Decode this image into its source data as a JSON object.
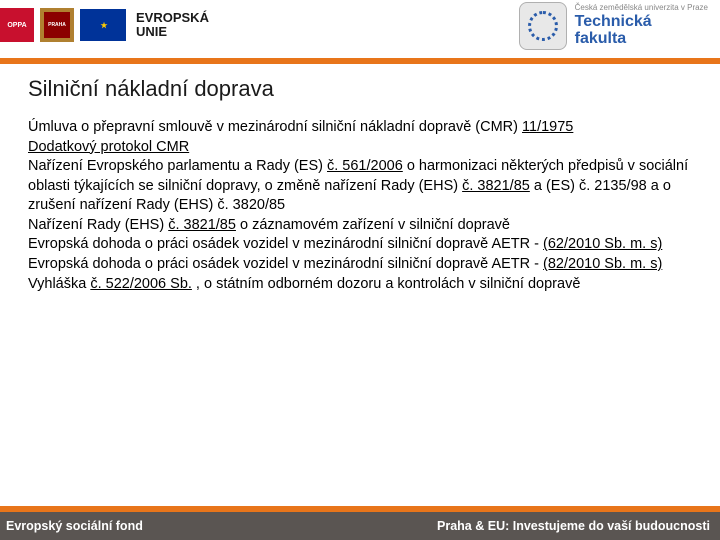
{
  "header": {
    "oppa": "OPPA",
    "praha_lines": [
      "PRA",
      "HA",
      "PRA",
      "GUE",
      "PRA",
      "GA"
    ],
    "eu_label_line1": "EVROPSKÁ",
    "eu_label_line2": "UNIE",
    "tf_small": "Česká zemědělská univerzita v Praze",
    "tf_line1": "Technická",
    "tf_line2": "fakulta"
  },
  "title": "Silniční nákladní doprava",
  "body": {
    "p1a": "Úmluva o přepravní smlouvě v mezinárodní silniční nákladní dopravě (CMR) ",
    "link1": "11/1975",
    "link2": "Dodatkový protokol CMR",
    "p2a": "Nařízení Evropského parlamentu a Rady (ES) ",
    "link3": "č. 561/2006",
    "p2b": " o harmonizaci některých předpisů v sociální oblasti týkajících se silniční dopravy, o změně nařízení Rady (EHS) ",
    "link4": "č. 3821/85",
    "p2c": " a (ES) č. 2135/98 a o zrušení nařízení Rady (EHS) č. 3820/85",
    "p3a": "Nařízení Rady (EHS) ",
    "link5": "č. 3821/85",
    "p3b": " o záznamovém zařízení v silniční dopravě",
    "p4a": "Evropská dohoda o práci osádek vozidel v mezinárodní silniční dopravě AETR - ",
    "link6": "(62/2010 Sb. m. s)",
    "p5a": "Evropská dohoda o práci osádek vozidel v mezinárodní silniční dopravě AETR - ",
    "link7": "(82/2010 Sb. m. s)",
    "p6a": "Vyhláška ",
    "link8": "č. 522/2006 Sb.",
    "p6b": " , o státním odborném dozoru a kontrolách v silniční dopravě"
  },
  "footer": {
    "left": "Evropský sociální fond",
    "right": "Praha & EU: Investujeme do vaší budoucnosti"
  }
}
